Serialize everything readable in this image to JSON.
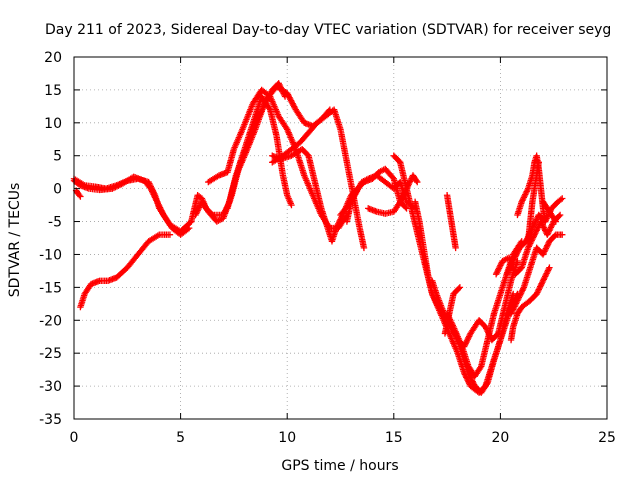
{
  "chart_data": {
    "type": "scatter",
    "title": "Day 211 of 2023, Sidereal Day-to-day VTEC variation (SDTVAR) for receiver seyg",
    "xlabel": "GPS time / hours",
    "ylabel": "SDTVAR / TECUs",
    "xlim": [
      0,
      25
    ],
    "ylim": [
      -35,
      20
    ],
    "xticks": [
      0,
      5,
      10,
      15,
      20,
      25
    ],
    "yticks": [
      -35,
      -30,
      -25,
      -20,
      -15,
      -10,
      -5,
      0,
      5,
      10,
      15,
      20
    ],
    "grid": true,
    "marker": "+",
    "colors": {
      "series": "#ff0000",
      "grid": "#a0a0a0",
      "axis": "#000000"
    },
    "series": [
      {
        "name": "s1",
        "points": [
          [
            0,
            1.5
          ],
          [
            0.5,
            0.5
          ],
          [
            1,
            0.3
          ],
          [
            1.5,
            0
          ],
          [
            2,
            0.5
          ],
          [
            2.5,
            1.2
          ],
          [
            3,
            1.5
          ],
          [
            3.5,
            1
          ],
          [
            3.8,
            -1
          ],
          [
            4,
            -3
          ],
          [
            4.5,
            -5.5
          ],
          [
            5,
            -6.5
          ],
          [
            5.5,
            -5
          ]
        ]
      },
      {
        "name": "s2",
        "points": [
          [
            0,
            1.2
          ],
          [
            0.3,
            0.5
          ],
          [
            0.7,
            0
          ],
          [
            1.2,
            -0.2
          ],
          [
            1.8,
            0
          ],
          [
            2.3,
            0.8
          ],
          [
            2.8,
            1.8
          ],
          [
            3.3,
            1.2
          ],
          [
            3.6,
            0
          ],
          [
            3.9,
            -2
          ],
          [
            4.2,
            -4
          ],
          [
            4.6,
            -6
          ],
          [
            5,
            -7
          ],
          [
            5.4,
            -6
          ]
        ]
      },
      {
        "name": "s3",
        "points": [
          [
            0.1,
            -0.3
          ],
          [
            0.2,
            -0.8
          ],
          [
            0.3,
            -1.2
          ]
        ]
      },
      {
        "name": "s4",
        "points": [
          [
            0.3,
            -18
          ],
          [
            0.5,
            -16
          ],
          [
            0.8,
            -14.5
          ],
          [
            1.2,
            -14
          ],
          [
            1.6,
            -14
          ],
          [
            2,
            -13.5
          ],
          [
            2.5,
            -12
          ],
          [
            3,
            -10
          ],
          [
            3.5,
            -8
          ],
          [
            4,
            -7
          ],
          [
            4.5,
            -7
          ]
        ]
      },
      {
        "name": "s5",
        "points": [
          [
            5.5,
            -5
          ],
          [
            5.8,
            -1
          ],
          [
            6,
            -1.5
          ],
          [
            6.2,
            -3
          ],
          [
            6.5,
            -4
          ],
          [
            7,
            -4
          ],
          [
            7.3,
            -2
          ],
          [
            7.6,
            2
          ],
          [
            8,
            5
          ],
          [
            8.5,
            9
          ],
          [
            9,
            13.5
          ],
          [
            9.5,
            15.5
          ],
          [
            10,
            14.5
          ],
          [
            10.4,
            12
          ],
          [
            10.8,
            10
          ],
          [
            11.2,
            9.5
          ],
          [
            11.6,
            10.5
          ],
          [
            12,
            12
          ]
        ]
      },
      {
        "name": "s6",
        "points": [
          [
            5.7,
            -4
          ],
          [
            6,
            -2
          ],
          [
            6.3,
            -3.5
          ],
          [
            6.7,
            -5
          ],
          [
            7,
            -4.5
          ],
          [
            7.4,
            -1
          ],
          [
            7.8,
            4
          ],
          [
            8.2,
            7
          ],
          [
            8.5,
            10
          ],
          [
            8.9,
            12.5
          ],
          [
            9.3,
            15
          ],
          [
            9.6,
            16
          ],
          [
            9.9,
            14
          ]
        ]
      },
      {
        "name": "s7",
        "points": [
          [
            6.3,
            1
          ],
          [
            6.8,
            2
          ],
          [
            7.2,
            2.5
          ],
          [
            7.5,
            6
          ],
          [
            7.9,
            9
          ],
          [
            8.4,
            13
          ],
          [
            8.8,
            15
          ],
          [
            9.2,
            14
          ],
          [
            9.6,
            11
          ],
          [
            10,
            9
          ],
          [
            10.4,
            6
          ],
          [
            10.8,
            2
          ],
          [
            11.2,
            -1
          ],
          [
            11.6,
            -4
          ],
          [
            12,
            -6
          ],
          [
            12.4,
            -6
          ],
          [
            12.8,
            -4
          ]
        ]
      },
      {
        "name": "s8",
        "points": [
          [
            7.2,
            -3
          ],
          [
            7.6,
            2
          ],
          [
            8,
            6
          ],
          [
            8.4,
            10
          ],
          [
            8.8,
            14
          ],
          [
            9.2,
            12
          ],
          [
            9.5,
            8
          ],
          [
            9.8,
            2
          ],
          [
            10,
            -1
          ],
          [
            10.2,
            -2.5
          ]
        ]
      },
      {
        "name": "s9",
        "points": [
          [
            9.3,
            4
          ],
          [
            9.8,
            5
          ],
          [
            10.2,
            6
          ],
          [
            10.6,
            7
          ],
          [
            11,
            8.5
          ],
          [
            11.4,
            10
          ],
          [
            11.8,
            11
          ],
          [
            12.2,
            12
          ],
          [
            12.5,
            9
          ],
          [
            12.8,
            4
          ],
          [
            13.1,
            -1
          ],
          [
            13.4,
            -6
          ],
          [
            13.6,
            -9
          ]
        ]
      },
      {
        "name": "s10",
        "points": [
          [
            9.3,
            5
          ],
          [
            9.7,
            4.5
          ],
          [
            10.2,
            5
          ],
          [
            10.7,
            6
          ],
          [
            11,
            5
          ],
          [
            11.3,
            1
          ],
          [
            11.6,
            -3
          ],
          [
            11.9,
            -6
          ],
          [
            12.1,
            -8
          ],
          [
            12.3,
            -6
          ],
          [
            12.6,
            -4
          ],
          [
            13,
            -1
          ],
          [
            13.3,
            0
          ]
        ]
      },
      {
        "name": "s11",
        "points": [
          [
            12.5,
            -4
          ],
          [
            13,
            -2
          ],
          [
            13.3,
            0
          ],
          [
            13.6,
            1
          ],
          [
            14,
            1.5
          ],
          [
            14.3,
            2.5
          ],
          [
            14.6,
            3
          ],
          [
            15,
            1.5
          ],
          [
            15.3,
            -2
          ],
          [
            15.6,
            -3
          ]
        ]
      },
      {
        "name": "s12",
        "points": [
          [
            12.8,
            -5
          ],
          [
            13,
            -2
          ],
          [
            13.5,
            1
          ],
          [
            13.8,
            1.5
          ],
          [
            14.2,
            2
          ],
          [
            14.6,
            1
          ],
          [
            15,
            0
          ],
          [
            15.3,
            1
          ],
          [
            15.6,
            -2
          ],
          [
            16,
            -3
          ]
        ]
      },
      {
        "name": "s13",
        "points": [
          [
            13.8,
            -3
          ],
          [
            14.2,
            -3.5
          ],
          [
            14.6,
            -3.8
          ],
          [
            15,
            -3.5
          ],
          [
            15.3,
            -2
          ],
          [
            15.6,
            0
          ],
          [
            15.9,
            2
          ],
          [
            16.1,
            1
          ]
        ]
      },
      {
        "name": "s14",
        "points": [
          [
            15,
            5
          ],
          [
            15.3,
            4
          ],
          [
            15.6,
            0
          ],
          [
            15.9,
            -4
          ],
          [
            16.2,
            -8
          ],
          [
            16.5,
            -12
          ],
          [
            16.8,
            -16
          ],
          [
            17.2,
            -19
          ],
          [
            17.6,
            -22
          ],
          [
            18,
            -25
          ],
          [
            18.3,
            -28
          ],
          [
            18.6,
            -30
          ],
          [
            19,
            -31
          ],
          [
            19.3,
            -30
          ],
          [
            19.6,
            -27
          ],
          [
            19.9,
            -24
          ],
          [
            20.2,
            -21
          ],
          [
            20.5,
            -18
          ],
          [
            20.8,
            -16
          ]
        ]
      },
      {
        "name": "s15",
        "points": [
          [
            16,
            -2
          ],
          [
            16.2,
            -5
          ],
          [
            16.4,
            -9
          ],
          [
            16.6,
            -13
          ],
          [
            16.8,
            -16
          ],
          [
            17.1,
            -18
          ],
          [
            17.5,
            -20
          ],
          [
            17.9,
            -22
          ],
          [
            18.2,
            -25
          ],
          [
            18.5,
            -28
          ],
          [
            18.8,
            -30
          ],
          [
            19.1,
            -31
          ],
          [
            19.4,
            -29.5
          ],
          [
            19.7,
            -26
          ],
          [
            20,
            -23
          ],
          [
            20.3,
            -19
          ],
          [
            20.6,
            -16
          ]
        ]
      },
      {
        "name": "s16",
        "points": [
          [
            16.8,
            -14
          ],
          [
            17,
            -16
          ],
          [
            17.3,
            -18.5
          ],
          [
            17.7,
            -21
          ],
          [
            18,
            -23
          ],
          [
            18.3,
            -24
          ],
          [
            18.6,
            -22
          ],
          [
            19,
            -20
          ],
          [
            19.3,
            -21
          ],
          [
            19.6,
            -23
          ],
          [
            19.9,
            -22
          ],
          [
            20.2,
            -18
          ],
          [
            20.5,
            -14
          ],
          [
            20.8,
            -11
          ]
        ]
      },
      {
        "name": "s17",
        "points": [
          [
            17.5,
            -19
          ],
          [
            17.8,
            -21
          ],
          [
            18.2,
            -24
          ],
          [
            18.5,
            -27
          ],
          [
            18.8,
            -28.5
          ],
          [
            19.1,
            -27
          ],
          [
            19.4,
            -23
          ],
          [
            19.7,
            -19
          ],
          [
            20,
            -16
          ],
          [
            20.3,
            -13
          ],
          [
            20.6,
            -10
          ],
          [
            21,
            -8
          ]
        ]
      },
      {
        "name": "s18",
        "points": [
          [
            17.4,
            -22
          ],
          [
            17.6,
            -19
          ],
          [
            17.8,
            -16
          ],
          [
            18.1,
            -15
          ]
        ]
      },
      {
        "name": "s19",
        "points": [
          [
            17.5,
            -1
          ],
          [
            17.6,
            -3
          ],
          [
            17.7,
            -5
          ],
          [
            17.8,
            -7
          ],
          [
            17.9,
            -9
          ]
        ]
      },
      {
        "name": "s20",
        "points": [
          [
            19.8,
            -13
          ],
          [
            20.1,
            -11
          ],
          [
            20.4,
            -10.5
          ],
          [
            20.7,
            -13
          ],
          [
            21,
            -12
          ],
          [
            21.3,
            -9
          ],
          [
            21.6,
            -7
          ],
          [
            21.9,
            -5
          ],
          [
            22.2,
            -7
          ],
          [
            22.5,
            -5
          ],
          [
            22.8,
            -4
          ]
        ]
      },
      {
        "name": "s21",
        "points": [
          [
            20.3,
            -13
          ],
          [
            20.6,
            -11
          ],
          [
            20.9,
            -9
          ],
          [
            21.2,
            -8
          ],
          [
            21.5,
            -6
          ],
          [
            21.8,
            -4
          ],
          [
            22.1,
            -5
          ],
          [
            22.4,
            -3
          ],
          [
            22.7,
            -2
          ],
          [
            22.9,
            -1.5
          ]
        ]
      },
      {
        "name": "s22",
        "points": [
          [
            20.5,
            -19
          ],
          [
            20.8,
            -17
          ],
          [
            21.1,
            -15
          ],
          [
            21.4,
            -12
          ],
          [
            21.7,
            -9
          ],
          [
            22,
            -10
          ],
          [
            22.3,
            -8
          ],
          [
            22.6,
            -7
          ],
          [
            22.9,
            -7
          ]
        ]
      },
      {
        "name": "s23",
        "points": [
          [
            20.5,
            -23
          ],
          [
            20.6,
            -21
          ],
          [
            20.8,
            -19
          ],
          [
            21,
            -18
          ],
          [
            21.4,
            -17
          ],
          [
            21.7,
            -16
          ],
          [
            22,
            -14
          ],
          [
            22.3,
            -12
          ]
        ]
      },
      {
        "name": "s24",
        "points": [
          [
            20.8,
            -4
          ],
          [
            21,
            -2
          ],
          [
            21.3,
            0
          ],
          [
            21.5,
            2
          ],
          [
            21.6,
            4
          ],
          [
            21.7,
            5
          ],
          [
            21.8,
            3
          ],
          [
            21.9,
            0
          ],
          [
            22,
            -3
          ],
          [
            22.1,
            -5
          ]
        ]
      },
      {
        "name": "s25",
        "points": [
          [
            21.3,
            -8
          ],
          [
            21.4,
            -5
          ],
          [
            21.5,
            -2
          ],
          [
            21.6,
            0
          ],
          [
            21.7,
            2
          ],
          [
            21.8,
            4
          ]
        ]
      },
      {
        "name": "s26",
        "points": [
          [
            22,
            -2
          ],
          [
            22.2,
            -3
          ],
          [
            22.4,
            -4
          ],
          [
            22.6,
            -5
          ]
        ]
      }
    ]
  }
}
